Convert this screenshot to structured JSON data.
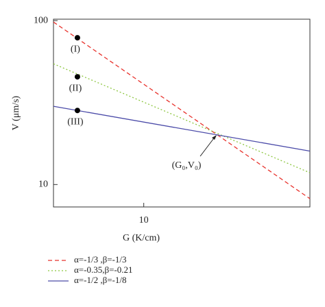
{
  "chart_data": {
    "type": "line",
    "x_label": "G (K/cm)",
    "y_label": "V (μm/s)",
    "log_x": true,
    "log_y": true,
    "xlim": [
      4,
      54
    ],
    "ylim": [
      7.3,
      102
    ],
    "xticks": [
      10
    ],
    "yticks": [
      10,
      100
    ],
    "x": [
      4,
      54
    ],
    "series": [
      {
        "name": "α=-1/3 ,β=-1/3",
        "color": "#e8322c",
        "dash": "6,4",
        "values": [
          98,
          8.2
        ]
      },
      {
        "name": "α=-0.35,β=-0.21",
        "color": "#8cc63f",
        "dash": "2,3",
        "values": [
          54.5,
          11.8
        ]
      },
      {
        "name": "α=-1/2 ,β=-1/8",
        "color": "#4a4aa8",
        "dash": "",
        "values": [
          30,
          16
        ]
      }
    ],
    "points": {
      "x": [
        5.1,
        5.1,
        5.1
      ],
      "values": [
        78.6,
        45.4,
        28.3
      ],
      "labels": [
        "(I)",
        "(II)",
        "(III)"
      ],
      "color": "#000000"
    },
    "annotation": "(G₀,V₀)"
  }
}
